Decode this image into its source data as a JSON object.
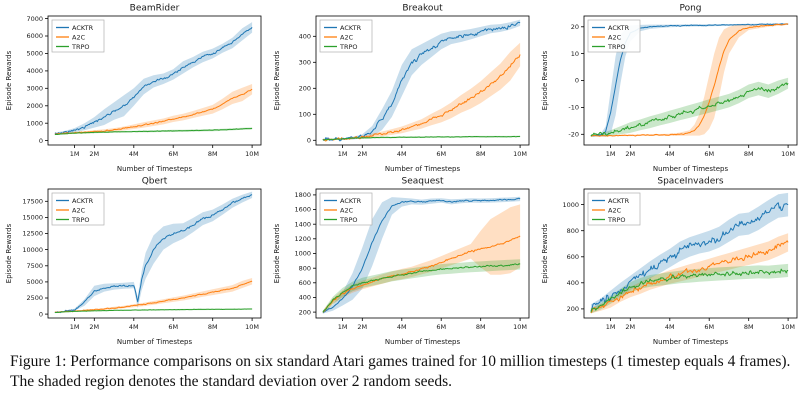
{
  "caption": {
    "text": "Figure 1: Performance comparisons on six standard Atari games trained for 10 million timesteps (1 timestep equals 4 frames). The shaded region denotes the standard deviation over 2 random seeds."
  },
  "colors": {
    "acktr": "#1f77b4",
    "a2c": "#ff7f0e",
    "trpo": "#2ca02c"
  },
  "chart_defaults": {
    "xlabel": "Number of Timesteps",
    "ylabel": "Episode Rewards",
    "x_units": "millions",
    "xlim": [
      -0.35,
      10.45
    ],
    "xtick_vals": [
      1,
      2,
      4,
      6,
      8,
      10
    ],
    "xtick_labels": [
      "1M",
      "2M",
      "4M",
      "6M",
      "8M",
      "10M"
    ],
    "x": [
      0,
      0.5,
      1,
      1.5,
      2,
      2.5,
      3,
      3.5,
      4,
      4.5,
      5,
      5.5,
      6,
      6.5,
      7,
      7.5,
      8,
      8.5,
      9,
      9.5,
      10
    ],
    "legend": [
      "ACKTR",
      "A2C",
      "TRPO"
    ],
    "legend_position": "upper-left",
    "grid": false
  },
  "chart_data": [
    {
      "type": "line",
      "title": "BeamRider",
      "ylim": [
        -250,
        7150
      ],
      "yticks": [
        0,
        1000,
        2000,
        3000,
        4000,
        5000,
        6000,
        7000
      ],
      "series": [
        {
          "name": "ACKTR",
          "color": "#1f77b4",
          "noise": 100,
          "y": [
            400,
            480,
            600,
            800,
            1050,
            1350,
            1700,
            2000,
            2500,
            3100,
            3400,
            3550,
            3800,
            4200,
            4500,
            4800,
            5000,
            5300,
            5600,
            6100,
            6500
          ],
          "sd": [
            60,
            80,
            120,
            200,
            300,
            450,
            500,
            600,
            500,
            450,
            350,
            300,
            300,
            350,
            300,
            300,
            280,
            260,
            300,
            350,
            300
          ]
        },
        {
          "name": "A2C",
          "color": "#ff7f0e",
          "noise": 50,
          "y": [
            380,
            420,
            450,
            480,
            520,
            560,
            620,
            700,
            800,
            900,
            1000,
            1100,
            1250,
            1350,
            1500,
            1650,
            1800,
            2100,
            2450,
            2650,
            2950
          ],
          "sd": [
            40,
            50,
            60,
            70,
            80,
            90,
            100,
            110,
            130,
            150,
            160,
            170,
            180,
            190,
            200,
            220,
            250,
            300,
            350,
            380,
            300
          ]
        },
        {
          "name": "TRPO",
          "color": "#2ca02c",
          "noise": 20,
          "y": [
            350,
            400,
            430,
            450,
            470,
            490,
            500,
            510,
            520,
            530,
            540,
            550,
            560,
            570,
            580,
            590,
            600,
            620,
            650,
            680,
            700
          ],
          "sd": [
            30,
            35,
            40,
            40,
            45,
            45,
            50,
            50,
            50,
            55,
            55,
            55,
            60,
            60,
            60,
            60,
            60,
            60,
            60,
            60,
            60
          ]
        }
      ]
    },
    {
      "type": "line",
      "title": "Breakout",
      "ylim": [
        -18,
        478
      ],
      "yticks": [
        0,
        100,
        200,
        300,
        400
      ],
      "series": [
        {
          "name": "ACKTR",
          "color": "#1f77b4",
          "noise": 12,
          "y": [
            2,
            3,
            5,
            8,
            15,
            35,
            80,
            140,
            230,
            300,
            330,
            355,
            380,
            395,
            400,
            408,
            418,
            428,
            432,
            440,
            452
          ],
          "sd": [
            1,
            2,
            3,
            5,
            8,
            20,
            40,
            50,
            60,
            50,
            40,
            35,
            30,
            25,
            22,
            20,
            18,
            16,
            15,
            14,
            12
          ]
        },
        {
          "name": "A2C",
          "color": "#ff7f0e",
          "noise": 8,
          "y": [
            2,
            3,
            5,
            8,
            12,
            18,
            25,
            32,
            40,
            52,
            63,
            80,
            95,
            115,
            140,
            160,
            185,
            215,
            245,
            285,
            330
          ],
          "sd": [
            1,
            2,
            3,
            4,
            5,
            7,
            9,
            11,
            13,
            15,
            18,
            22,
            26,
            30,
            34,
            38,
            42,
            46,
            50,
            55,
            45
          ]
        },
        {
          "name": "TRPO",
          "color": "#2ca02c",
          "noise": 1.5,
          "y": [
            2,
            4,
            6,
            8,
            9,
            10,
            11,
            11,
            12,
            12,
            12,
            13,
            13,
            13,
            13,
            14,
            14,
            14,
            14,
            14,
            15
          ],
          "sd": [
            1,
            2,
            2,
            3,
            3,
            3,
            3,
            3,
            3,
            3,
            3,
            3,
            3,
            3,
            3,
            3,
            3,
            3,
            3,
            3,
            3
          ]
        }
      ]
    },
    {
      "type": "line",
      "title": "Pong",
      "ylim": [
        -24,
        24
      ],
      "yticks": [
        -20,
        -10,
        0,
        10,
        20
      ],
      "series": [
        {
          "name": "ACKTR",
          "color": "#1f77b4",
          "noise": 0.25,
          "x": [
            0,
            0.5,
            0.75,
            1,
            1.25,
            1.5,
            1.75,
            2,
            2.5,
            3,
            4,
            5,
            6,
            7,
            8,
            9,
            10
          ],
          "y": [
            -20.6,
            -20.3,
            -19,
            -12,
            -2,
            8,
            14,
            17.5,
            19.5,
            20,
            20.3,
            20.5,
            20.6,
            20.7,
            20.8,
            20.9,
            21
          ],
          "sd": [
            0.2,
            0.5,
            2,
            8,
            11,
            9,
            5,
            3,
            1.2,
            0.8,
            0.5,
            0.4,
            0.4,
            0.3,
            0.3,
            0.3,
            0.3
          ]
        },
        {
          "name": "A2C",
          "color": "#ff7f0e",
          "noise": 0.3,
          "x": [
            0,
            1,
            2,
            3,
            4,
            4.5,
            5,
            5.25,
            5.5,
            5.75,
            6,
            6.25,
            6.5,
            6.75,
            7,
            7.5,
            8,
            9,
            10
          ],
          "y": [
            -20.6,
            -20.5,
            -20.4,
            -20.3,
            -20.2,
            -20,
            -19.5,
            -18.5,
            -16.5,
            -13,
            -8,
            -2,
            5,
            11,
            15,
            18.5,
            19.8,
            20.5,
            21
          ],
          "sd": [
            0.2,
            0.2,
            0.3,
            0.3,
            0.4,
            0.6,
            1,
            2,
            4,
            7,
            10,
            12,
            11,
            8,
            5,
            2.5,
            1,
            0.5,
            0.3
          ]
        },
        {
          "name": "TRPO",
          "color": "#2ca02c",
          "noise": 1.2,
          "y": [
            -20.6,
            -20.2,
            -19.5,
            -18.5,
            -17.5,
            -16.5,
            -15.5,
            -14.5,
            -13.5,
            -12.5,
            -11.5,
            -10.5,
            -9.5,
            -8.5,
            -7.5,
            -6,
            -4,
            -3,
            -4,
            -2.5,
            -1
          ],
          "sd": [
            0.2,
            0.5,
            1,
            1.5,
            2,
            2,
            2.2,
            2.2,
            2.3,
            2.3,
            2.4,
            2.4,
            2.5,
            2.5,
            2.5,
            2.5,
            2.5,
            2.5,
            2.5,
            2.5,
            2
          ]
        }
      ]
    },
    {
      "type": "line",
      "title": "Qbert",
      "ylim": [
        -600,
        19400
      ],
      "yticks": [
        0,
        2500,
        5000,
        7500,
        10000,
        12500,
        15000,
        17500
      ],
      "series": [
        {
          "name": "ACKTR",
          "color": "#1f77b4",
          "noise": 250,
          "x": [
            0,
            0.5,
            1,
            1.5,
            2,
            2.5,
            3,
            3.5,
            4,
            4.2,
            4.4,
            4.6,
            5,
            5.5,
            6,
            6.5,
            7,
            7.5,
            8,
            8.5,
            9,
            9.5,
            10
          ],
          "y": [
            300,
            400,
            700,
            1800,
            3600,
            4100,
            4300,
            4400,
            4500,
            1800,
            5200,
            7500,
            10000,
            11800,
            12500,
            12900,
            13800,
            14800,
            15300,
            16200,
            17200,
            17900,
            18500
          ],
          "sd": [
            50,
            80,
            150,
            500,
            800,
            600,
            500,
            450,
            500,
            900,
            1500,
            2000,
            2200,
            1800,
            1500,
            1200,
            1100,
            1000,
            900,
            800,
            700,
            600,
            500
          ]
        },
        {
          "name": "A2C",
          "color": "#ff7f0e",
          "noise": 120,
          "y": [
            300,
            380,
            450,
            550,
            680,
            800,
            950,
            1100,
            1300,
            1500,
            1750,
            2000,
            2250,
            2500,
            2800,
            3100,
            3400,
            3700,
            4000,
            4600,
            5100
          ],
          "sd": [
            50,
            60,
            80,
            100,
            120,
            150,
            180,
            200,
            230,
            260,
            290,
            320,
            350,
            380,
            400,
            420,
            450,
            480,
            500,
            550,
            500
          ]
        },
        {
          "name": "TRPO",
          "color": "#2ca02c",
          "noise": 40,
          "y": [
            250,
            350,
            420,
            480,
            520,
            550,
            580,
            600,
            620,
            640,
            660,
            680,
            700,
            710,
            720,
            730,
            740,
            750,
            760,
            780,
            800
          ],
          "sd": [
            40,
            50,
            60,
            70,
            80,
            80,
            90,
            90,
            90,
            100,
            100,
            100,
            100,
            100,
            100,
            100,
            100,
            100,
            100,
            100,
            100
          ]
        }
      ]
    },
    {
      "type": "line",
      "title": "Seaquest",
      "ylim": [
        120,
        1880
      ],
      "yticks": [
        200,
        400,
        600,
        800,
        1000,
        1200,
        1400,
        1600,
        1800
      ],
      "series": [
        {
          "name": "ACKTR",
          "color": "#1f77b4",
          "noise": 15,
          "y": [
            200,
            260,
            380,
            550,
            800,
            1150,
            1450,
            1650,
            1700,
            1710,
            1700,
            1715,
            1725,
            1705,
            1715,
            1725,
            1720,
            1725,
            1730,
            1735,
            1745
          ],
          "sd": [
            20,
            40,
            90,
            180,
            280,
            320,
            250,
            120,
            60,
            40,
            35,
            35,
            30,
            35,
            30,
            30,
            30,
            30,
            30,
            30,
            30
          ]
        },
        {
          "name": "A2C",
          "color": "#ff7f0e",
          "noise": 20,
          "y": [
            200,
            350,
            450,
            520,
            570,
            610,
            650,
            690,
            720,
            750,
            790,
            830,
            880,
            930,
            980,
            1030,
            1060,
            1090,
            1130,
            1180,
            1240
          ],
          "sd": [
            20,
            40,
            50,
            55,
            60,
            60,
            65,
            65,
            70,
            70,
            75,
            80,
            85,
            90,
            95,
            100,
            250,
            380,
            420,
            450,
            430
          ]
        },
        {
          "name": "TRPO",
          "color": "#2ca02c",
          "noise": 18,
          "y": [
            200,
            360,
            470,
            550,
            600,
            630,
            660,
            690,
            710,
            730,
            750,
            770,
            785,
            795,
            805,
            815,
            822,
            830,
            838,
            845,
            852
          ],
          "sd": [
            20,
            50,
            60,
            65,
            70,
            70,
            70,
            70,
            70,
            70,
            70,
            70,
            70,
            70,
            70,
            70,
            70,
            70,
            70,
            70,
            70
          ]
        }
      ]
    },
    {
      "type": "line",
      "title": "SpaceInvaders",
      "ylim": [
        130,
        1120
      ],
      "yticks": [
        200,
        400,
        600,
        800,
        1000
      ],
      "series": [
        {
          "name": "ACKTR",
          "color": "#1f77b4",
          "noise": 50,
          "y": [
            210,
            250,
            300,
            350,
            400,
            450,
            500,
            545,
            590,
            640,
            675,
            700,
            720,
            750,
            800,
            845,
            855,
            895,
            945,
            990,
            1000
          ],
          "sd": [
            25,
            30,
            40,
            50,
            55,
            60,
            65,
            70,
            70,
            75,
            75,
            75,
            80,
            80,
            85,
            85,
            85,
            90,
            90,
            90,
            90
          ]
        },
        {
          "name": "A2C",
          "color": "#ff7f0e",
          "noise": 35,
          "y": [
            185,
            210,
            240,
            290,
            330,
            360,
            395,
            420,
            445,
            465,
            485,
            505,
            525,
            545,
            565,
            585,
            605,
            625,
            645,
            680,
            710
          ],
          "sd": [
            20,
            25,
            30,
            35,
            40,
            45,
            48,
            50,
            52,
            55,
            57,
            58,
            60,
            62,
            64,
            66,
            68,
            70,
            72,
            75,
            70
          ]
        },
        {
          "name": "TRPO",
          "color": "#2ca02c",
          "noise": 28,
          "y": [
            185,
            220,
            270,
            320,
            365,
            395,
            415,
            425,
            435,
            445,
            452,
            458,
            463,
            468,
            472,
            476,
            480,
            484,
            482,
            488,
            495
          ],
          "sd": [
            20,
            25,
            30,
            35,
            40,
            42,
            45,
            46,
            48,
            48,
            50,
            50,
            50,
            50,
            50,
            50,
            50,
            50,
            50,
            50,
            50
          ]
        }
      ]
    }
  ]
}
